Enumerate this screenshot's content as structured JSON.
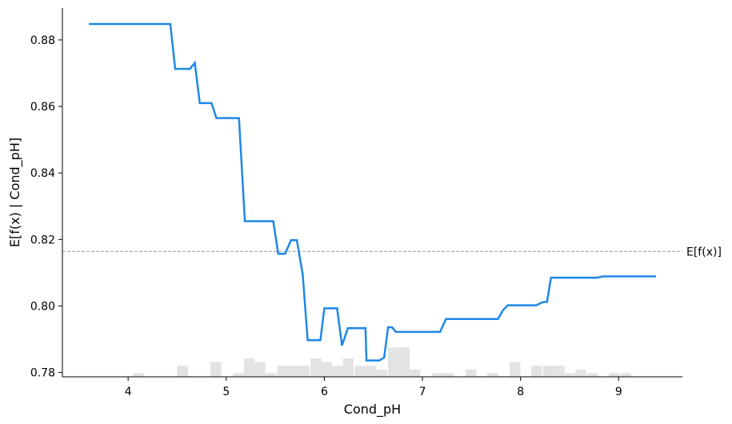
{
  "chart_data": {
    "type": "line",
    "xlabel": "Cond_pH",
    "ylabel": "E[f(x) | Cond_pH]",
    "xlim": [
      3.33,
      9.65
    ],
    "ylim": [
      0.7787,
      0.8896
    ],
    "xticks": [
      "4",
      "5",
      "6",
      "7",
      "8",
      "9"
    ],
    "yticks": [
      "0.78",
      "0.80",
      "0.82",
      "0.84",
      "0.86",
      "0.88"
    ],
    "reference_line": {
      "label": "E[f(x)]",
      "y": 0.8164
    },
    "line_color": "#1e88e5",
    "histogram_color": "#e3e3e3",
    "grid": false,
    "series": [
      {
        "x": [
          3.6,
          4.43,
          4.48,
          4.63,
          4.68,
          4.73,
          4.85,
          4.9,
          5.05,
          5.13,
          5.19,
          5.3,
          5.48,
          5.53,
          5.6,
          5.66,
          5.72,
          5.78,
          5.83,
          5.96,
          6.0,
          6.13,
          6.18,
          6.24,
          6.28,
          6.42,
          6.43,
          6.53,
          6.56,
          6.61,
          6.65,
          6.69,
          6.73,
          6.85,
          7.0,
          7.18,
          7.24,
          7.3,
          7.77,
          7.82,
          7.87,
          8.16,
          8.23,
          8.27,
          8.31,
          8.78,
          8.84,
          9.38
        ],
        "y": [
          0.8848,
          0.8848,
          0.8713,
          0.8713,
          0.8731,
          0.861,
          0.861,
          0.8565,
          0.8565,
          0.8565,
          0.8255,
          0.8255,
          0.8255,
          0.8157,
          0.8157,
          0.8198,
          0.8198,
          0.8095,
          0.7897,
          0.7897,
          0.7993,
          0.7993,
          0.7881,
          0.7933,
          0.7933,
          0.7933,
          0.7836,
          0.7836,
          0.7836,
          0.7845,
          0.7936,
          0.7936,
          0.7922,
          0.7922,
          0.7922,
          0.7922,
          0.7961,
          0.7961,
          0.7961,
          0.7987,
          0.8002,
          0.8002,
          0.8012,
          0.8012,
          0.8085,
          0.8085,
          0.8089,
          0.8089
        ]
      }
    ],
    "histogram": {
      "bin_starts": [
        3.6,
        3.71,
        3.82,
        3.94,
        4.05,
        4.16,
        4.28,
        4.39,
        4.5,
        4.61,
        4.73,
        4.84,
        4.95,
        5.07,
        5.18,
        5.29,
        5.4,
        5.52,
        5.63,
        5.74,
        5.86,
        5.97,
        6.08,
        6.19,
        6.31,
        6.42,
        6.53,
        6.65,
        6.76,
        6.87,
        6.98,
        7.1,
        7.21,
        7.32,
        7.44,
        7.55,
        7.66,
        7.77,
        7.89,
        8.0,
        8.11,
        8.23,
        8.34,
        8.45,
        8.56,
        8.68,
        8.79,
        8.9,
        9.02,
        9.13,
        9.24
      ],
      "counts": [
        0,
        0,
        0,
        0,
        1,
        0,
        0,
        0,
        3,
        0,
        0,
        4,
        0,
        1,
        5,
        4,
        1,
        3,
        3,
        3,
        5,
        4,
        3,
        5,
        3,
        3,
        2,
        8,
        8,
        2,
        0,
        1,
        1,
        0,
        2,
        0,
        1,
        0,
        4,
        0,
        3,
        3,
        3,
        1,
        2,
        1,
        0,
        1,
        1,
        0,
        0
      ],
      "bin_width": 0.113
    }
  }
}
